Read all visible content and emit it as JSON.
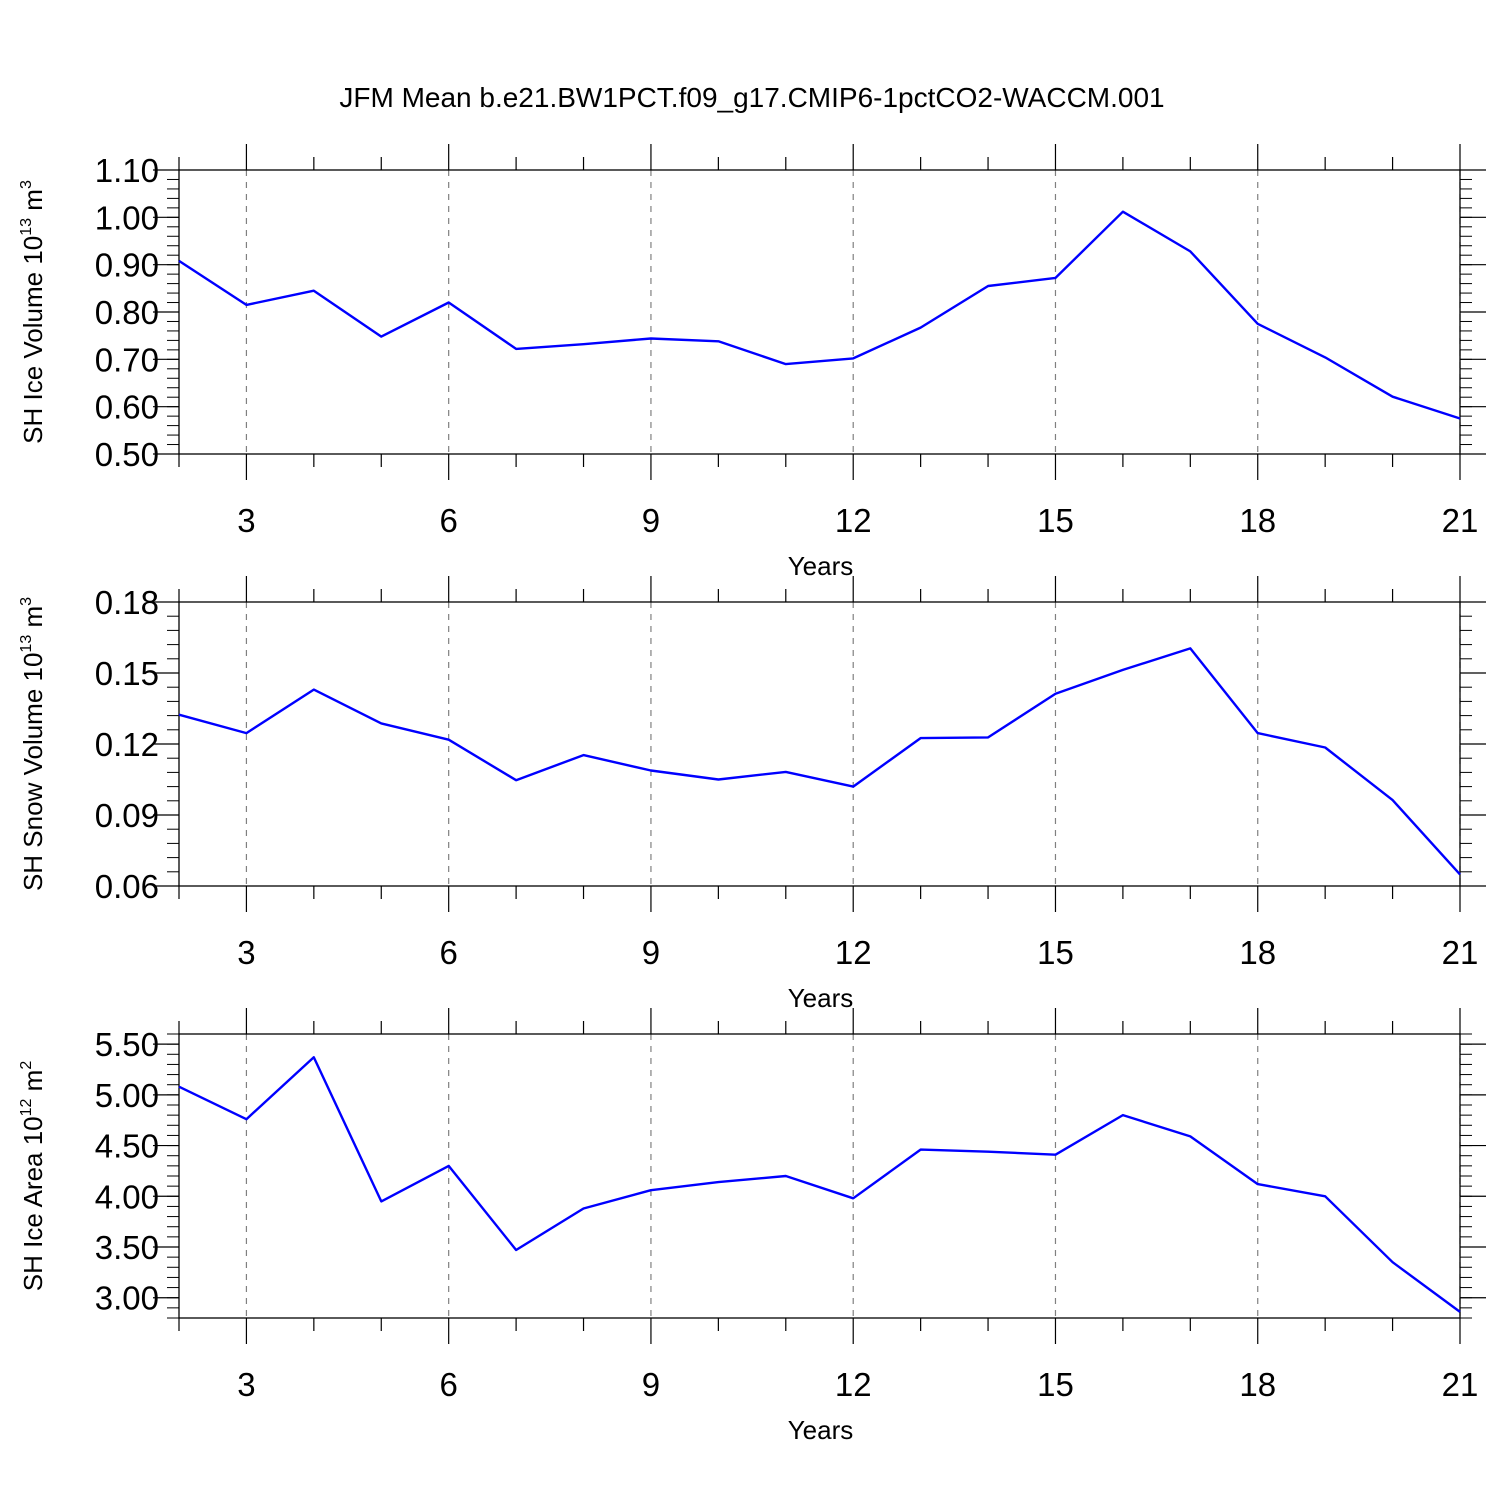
{
  "figure": {
    "title": "JFM Mean b.e21.BW1PCT.f09_g17.CMIP6-1pctCO2-WACCM.001",
    "line_color": "#0000ff",
    "grid_color": "#808080"
  },
  "chart_data": [
    {
      "type": "line",
      "title": "",
      "xlabel": "Years",
      "ylabel": {
        "base": "SH Ice Volume 10",
        "exponent": "13",
        "unit": " m",
        "unit_exponent": "3"
      },
      "xlim": [
        2,
        21
      ],
      "ylim": [
        0.5,
        1.1
      ],
      "x_ticks": [
        3,
        6,
        9,
        12,
        15,
        18,
        21
      ],
      "x_tick_labels": [
        "3",
        "6",
        "9",
        "12",
        "15",
        "18",
        "21"
      ],
      "y_ticks": [
        0.5,
        0.6,
        0.7,
        0.8,
        0.9,
        1.0,
        1.1
      ],
      "y_tick_labels": [
        "0.50",
        "0.60",
        "0.70",
        "0.80",
        "0.90",
        "1.00",
        "1.10"
      ],
      "y_minor_step": 0.02,
      "grid": "vertical dashed at major x ticks",
      "x": [
        2,
        3,
        4,
        5,
        6,
        7,
        8,
        9,
        10,
        11,
        12,
        13,
        14,
        15,
        16,
        17,
        18,
        19,
        20,
        21
      ],
      "values": [
        0.908,
        0.815,
        0.845,
        0.748,
        0.82,
        0.722,
        0.732,
        0.744,
        0.738,
        0.69,
        0.702,
        0.767,
        0.855,
        0.872,
        1.012,
        0.928,
        0.775,
        0.704,
        0.621,
        0.575
      ]
    },
    {
      "type": "line",
      "title": "",
      "xlabel": "Years",
      "ylabel": {
        "base": "SH Snow Volume 10",
        "exponent": "13",
        "unit": " m",
        "unit_exponent": "3"
      },
      "xlim": [
        2,
        21
      ],
      "ylim": [
        0.06,
        0.18
      ],
      "x_ticks": [
        3,
        6,
        9,
        12,
        15,
        18,
        21
      ],
      "x_tick_labels": [
        "3",
        "6",
        "9",
        "12",
        "15",
        "18",
        "21"
      ],
      "y_ticks": [
        0.06,
        0.09,
        0.12,
        0.15,
        0.18
      ],
      "y_tick_labels": [
        "0.06",
        "0.09",
        "0.12",
        "0.15",
        "0.18"
      ],
      "y_minor_step": 0.006,
      "grid": "vertical dashed at major x ticks",
      "x": [
        2,
        3,
        4,
        5,
        6,
        7,
        8,
        9,
        10,
        11,
        12,
        13,
        14,
        15,
        16,
        17,
        18,
        19,
        20,
        21
      ],
      "values": [
        0.1324,
        0.1246,
        0.143,
        0.1287,
        0.1218,
        0.1047,
        0.1153,
        0.1088,
        0.105,
        0.1082,
        0.102,
        0.1225,
        0.1228,
        0.1412,
        0.1513,
        0.1604,
        0.1246,
        0.1185,
        0.0963,
        0.0649
      ]
    },
    {
      "type": "line",
      "title": "",
      "xlabel": "Years",
      "ylabel": {
        "base": "SH Ice Area 10",
        "exponent": "12",
        "unit": " m",
        "unit_exponent": "2"
      },
      "xlim": [
        2,
        21
      ],
      "ylim": [
        2.8,
        5.6
      ],
      "x_ticks": [
        3,
        6,
        9,
        12,
        15,
        18,
        21
      ],
      "x_tick_labels": [
        "3",
        "6",
        "9",
        "12",
        "15",
        "18",
        "21"
      ],
      "y_ticks": [
        3.0,
        3.5,
        4.0,
        4.5,
        5.0,
        5.5
      ],
      "y_tick_labels": [
        "3.00",
        "3.50",
        "4.00",
        "4.50",
        "5.00",
        "5.50"
      ],
      "y_minor_step": 0.1,
      "grid": "vertical dashed at major x ticks",
      "x": [
        2,
        3,
        4,
        5,
        6,
        7,
        8,
        9,
        10,
        11,
        12,
        13,
        14,
        15,
        16,
        17,
        18,
        19,
        20,
        21
      ],
      "values": [
        5.08,
        4.76,
        5.37,
        3.95,
        4.3,
        3.47,
        3.88,
        4.06,
        4.14,
        4.2,
        3.98,
        4.46,
        4.44,
        4.41,
        4.8,
        4.59,
        4.12,
        4.0,
        3.35,
        2.86
      ]
    }
  ]
}
